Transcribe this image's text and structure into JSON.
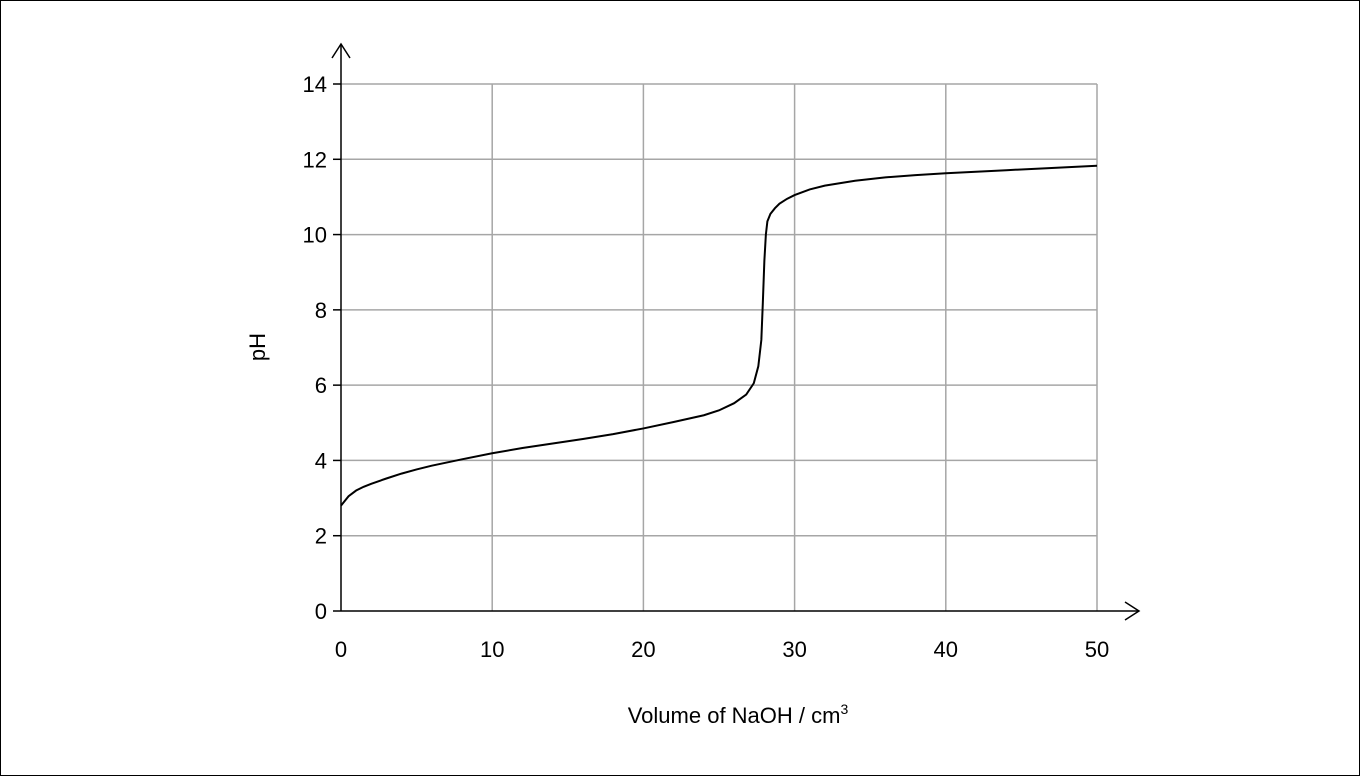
{
  "chart_data": {
    "type": "line",
    "title": "",
    "xlabel": "Volume of NaOH / cm",
    "xlabel_superscript": "3",
    "ylabel": "pH",
    "xlim": [
      0,
      50
    ],
    "ylim": [
      0,
      14
    ],
    "x_ticks": [
      0,
      10,
      20,
      30,
      40,
      50
    ],
    "y_ticks": [
      0,
      2,
      4,
      6,
      8,
      10,
      12,
      14
    ],
    "grid": true,
    "colors": {
      "curve": "#000000",
      "grid": "#a6a6a6",
      "axis": "#000000"
    },
    "series": [
      {
        "x": [
          0,
          0.5,
          1,
          1.5,
          2,
          3,
          4,
          5,
          6,
          8,
          10,
          12,
          14,
          16,
          18,
          20,
          22,
          24,
          25,
          26,
          26.8,
          27.3,
          27.6,
          27.8,
          27.9,
          28.0,
          28.1,
          28.2,
          28.4,
          28.7,
          29,
          29.5,
          30,
          31,
          32,
          34,
          36,
          38,
          40,
          42,
          44,
          46,
          48,
          50
        ],
        "y": [
          2.8,
          3.05,
          3.2,
          3.3,
          3.38,
          3.52,
          3.65,
          3.76,
          3.86,
          4.03,
          4.19,
          4.33,
          4.45,
          4.57,
          4.7,
          4.85,
          5.02,
          5.2,
          5.33,
          5.52,
          5.75,
          6.05,
          6.5,
          7.2,
          8.2,
          9.3,
          10.0,
          10.35,
          10.55,
          10.7,
          10.82,
          10.95,
          11.05,
          11.2,
          11.3,
          11.43,
          11.52,
          11.58,
          11.63,
          11.67,
          11.71,
          11.75,
          11.79,
          11.83
        ]
      }
    ]
  }
}
